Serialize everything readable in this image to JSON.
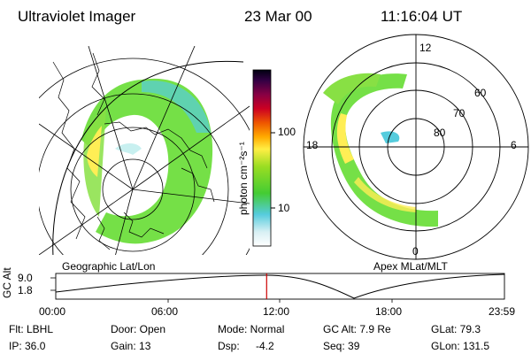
{
  "header": {
    "instrument": "Ultraviolet Imager",
    "date": "23 Mar 00",
    "time": "11:16:04 UT"
  },
  "colorbar": {
    "unit_label": "photon cm⁻²s⁻¹",
    "tick_100": "100",
    "tick_10": "10"
  },
  "left_map": {
    "label": "Geographic Lat/Lon"
  },
  "right_map": {
    "label": "Apex MLat/MLT",
    "mlt_labels": [
      "12",
      "18",
      "6",
      "0"
    ],
    "lat_labels": [
      "60",
      "70",
      "80"
    ]
  },
  "timeline": {
    "ylabel": "GC Alt",
    "y_ticks": [
      "9.0",
      "1.8"
    ],
    "x_ticks": [
      "00:00",
      "06:00",
      "12:00",
      "18:00",
      "23:59"
    ],
    "current_time_fraction": 0.47
  },
  "status": {
    "filter": "Flt: LBHL",
    "ip": "IP: 36.0",
    "door": "Door: Open",
    "gain": "Gain: 13",
    "mode": "Mode: Normal",
    "dsp_label": "Dsp:",
    "dsp_value": "-4.2",
    "gc_alt": "GC Alt: 7.9 Re",
    "seq": "Seq: 39",
    "glat": "GLat: 79.3",
    "glon": "GLon: 131.5"
  },
  "colors": {
    "time_marker": "#cc0000",
    "aurora_low": "#c8f0f0",
    "aurora_mid": "#66dd33",
    "aurora_high": "#ffee55"
  }
}
